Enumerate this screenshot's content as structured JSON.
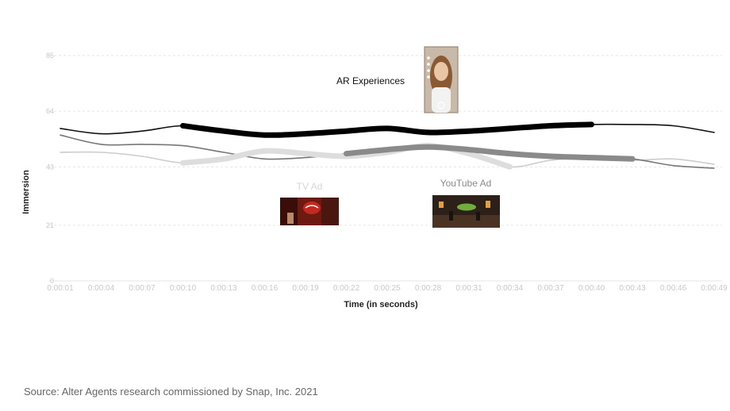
{
  "chart_data": {
    "type": "line",
    "title": "",
    "xlabel": "Time (in seconds)",
    "ylabel": "Immersion",
    "ylim": [
      0,
      85
    ],
    "yticks": [
      0,
      21,
      43,
      64,
      85
    ],
    "x": [
      "0:00:01",
      "0:00:04",
      "0:00:07",
      "0:00:10",
      "0:00:13",
      "0:00:16",
      "0:00:19",
      "0:00:22",
      "0:00:25",
      "0:00:28",
      "0:00:31",
      "0:00:34",
      "0:00:37",
      "0:00:40",
      "0:00:43",
      "0:00:46",
      "0:00:49"
    ],
    "grid": true,
    "legend": "none",
    "series": [
      {
        "color": "#111111",
        "values": [
          57.5,
          55.5,
          56.5,
          58.5,
          56.5,
          55,
          55.5,
          56.5,
          57.5,
          56,
          56.5,
          57.5,
          58.5,
          59,
          59,
          58.5,
          56
        ],
        "highlight": {
          "from": "0:00:10",
          "to": "0:00:40",
          "label": "AR Experiences",
          "color": "#000000"
        }
      },
      {
        "color": "#777777",
        "values": [
          55,
          51.5,
          51.5,
          51,
          48.5,
          46,
          46.5,
          48,
          49.5,
          50.5,
          49.5,
          48,
          47,
          46.5,
          46,
          43.5,
          42.5
        ],
        "highlight": {
          "from": "0:00:22",
          "to": "0:00:43",
          "color": "#8a8a8a"
        }
      },
      {
        "color": "#cccccc",
        "values": [
          48.5,
          48.5,
          47,
          44.5,
          46,
          49,
          48,
          47,
          48.5,
          51,
          48,
          43,
          45.5,
          46.5,
          45.5,
          46,
          44
        ],
        "highlight": {
          "from": "0:00:10",
          "to": "0:00:34",
          "color": "#dddddd"
        }
      }
    ],
    "annotations": [
      {
        "label": "AR Experiences",
        "image": "selfie-thumbnail"
      },
      {
        "label": "TV Ad",
        "image": "coca-cola-ad-thumbnail"
      },
      {
        "label": "YouTube Ad",
        "image": "restaurant-scene-thumbnail"
      }
    ]
  },
  "footer": {
    "source": "Source: Alter Agents research commissioned by Snap, Inc. 2021"
  },
  "colors": {
    "grid": "#e6e6e6",
    "tick": "#c8c8c8",
    "axis_title": "#222222",
    "faded_label": "#d6d6d6"
  }
}
